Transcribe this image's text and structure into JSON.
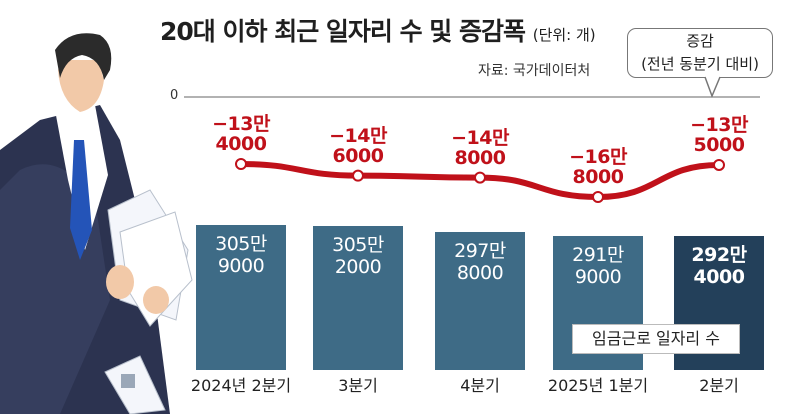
{
  "title": "20대 이하 최근 일자리 수 및 증감폭",
  "unit": "(단위: 개)",
  "source": "자료: 국가데이터처",
  "callout": {
    "line1": "증감",
    "line2": "(전년 동분기 대비)"
  },
  "zero_label": "0",
  "legend_label": "임금근로 일자리 수",
  "colors": {
    "bar": "#3e6b86",
    "bar_last": "#23405a",
    "line": "#c0111a"
  },
  "chart_data": {
    "type": "bar",
    "categories": [
      "2024년 2분기",
      "3분기",
      "4분기",
      "2025년 1분기",
      "2분기"
    ],
    "series": [
      {
        "name": "임금근로 일자리 수",
        "values": [
          3059000,
          3052000,
          2978000,
          2919000,
          2924000
        ],
        "labels": [
          [
            "305만",
            "9000"
          ],
          [
            "305만",
            "2000"
          ],
          [
            "297만",
            "8000"
          ],
          [
            "291만",
            "9000"
          ],
          [
            "292만",
            "4000"
          ]
        ]
      },
      {
        "name": "증감 (전년 동분기 대비)",
        "type": "line",
        "values": [
          -134000,
          -146000,
          -148000,
          -168000,
          -135000
        ],
        "labels": [
          [
            "−13만",
            "4000"
          ],
          [
            "−14만",
            "6000"
          ],
          [
            "−14만",
            "8000"
          ],
          [
            "−16만",
            "8000"
          ],
          [
            "−13만",
            "5000"
          ]
        ]
      }
    ],
    "axis_zero": 0
  }
}
